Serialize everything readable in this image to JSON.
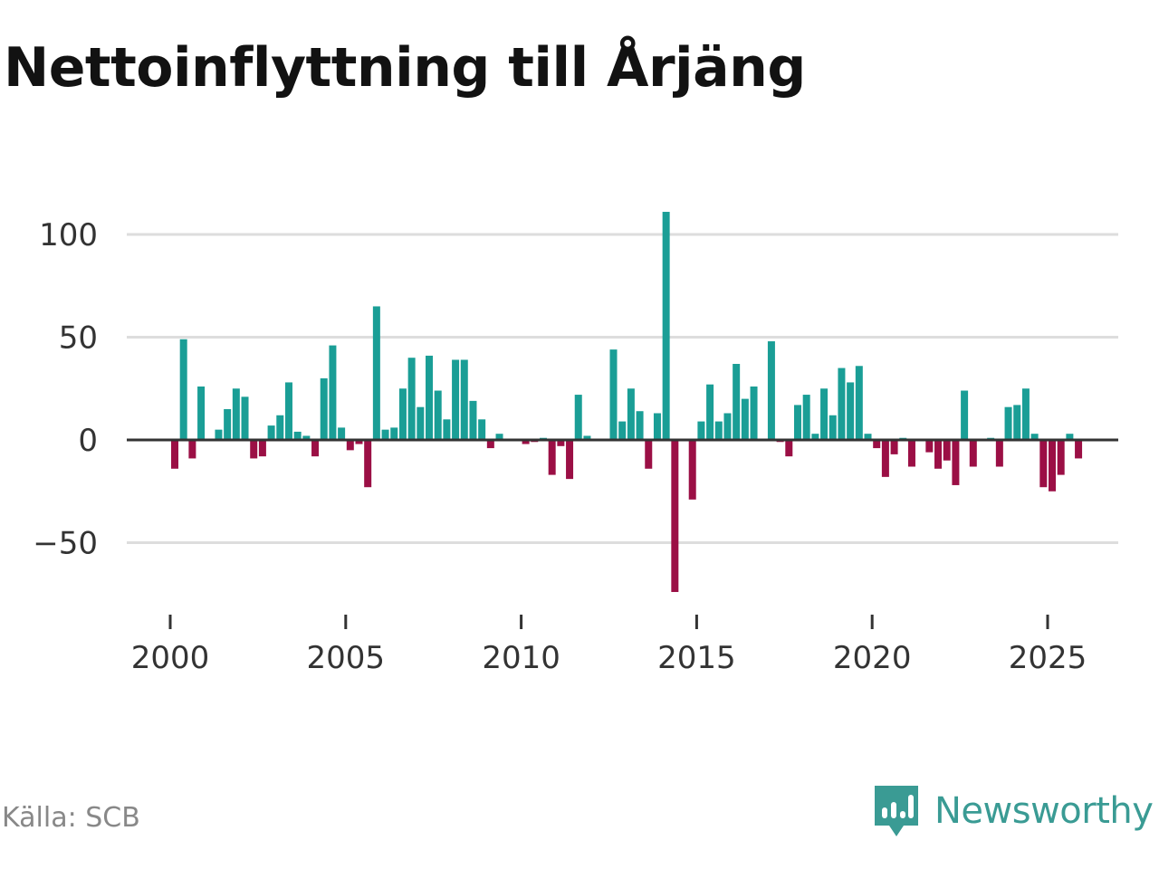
{
  "chart_data": {
    "type": "bar",
    "title": "Nettoinflyttning till Årjäng",
    "xlabel": "",
    "ylabel": "",
    "x_tick_labels": [
      "2000",
      "2005",
      "2010",
      "2015",
      "2020",
      "2025"
    ],
    "y_tick_labels": [
      "100",
      "50",
      "0",
      "−50"
    ],
    "y_ticks": [
      100,
      50,
      0,
      -50
    ],
    "ylim": [
      -75,
      112
    ],
    "x_range": [
      2000,
      2026
    ],
    "grid": true,
    "positive_color": "#1a9e96",
    "negative_color": "#9b0f45",
    "series": [
      {
        "name": "Nettoinflyttning",
        "x": [
          2000.0,
          2000.25,
          2000.5,
          2000.75,
          2001.0,
          2001.25,
          2001.5,
          2001.75,
          2002.0,
          2002.25,
          2002.5,
          2002.75,
          2003.0,
          2003.25,
          2003.5,
          2003.75,
          2004.0,
          2004.25,
          2004.5,
          2004.75,
          2005.0,
          2005.25,
          2005.5,
          2005.75,
          2006.0,
          2006.25,
          2006.5,
          2006.75,
          2007.0,
          2007.25,
          2007.5,
          2007.75,
          2008.0,
          2008.25,
          2008.5,
          2008.75,
          2009.0,
          2009.25,
          2009.5,
          2009.75,
          2010.0,
          2010.25,
          2010.5,
          2010.75,
          2011.0,
          2011.25,
          2011.5,
          2011.75,
          2012.0,
          2012.25,
          2012.5,
          2012.75,
          2013.0,
          2013.25,
          2013.5,
          2013.75,
          2014.0,
          2014.25,
          2014.5,
          2014.75,
          2015.0,
          2015.25,
          2015.5,
          2015.75,
          2016.0,
          2016.25,
          2016.5,
          2016.75,
          2017.0,
          2017.25,
          2017.5,
          2017.75,
          2018.0,
          2018.25,
          2018.5,
          2018.75,
          2019.0,
          2019.25,
          2019.5,
          2019.75,
          2020.0,
          2020.25,
          2020.5,
          2020.75,
          2021.0,
          2021.25,
          2021.5,
          2021.75,
          2022.0,
          2022.25,
          2022.5,
          2022.75,
          2023.0,
          2023.25,
          2023.5,
          2023.75,
          2024.0,
          2024.25,
          2024.5,
          2024.75,
          2025.0,
          2025.25,
          2025.5,
          2025.75
        ],
        "values": [
          -14,
          49,
          -9,
          26,
          0,
          5,
          15,
          25,
          21,
          -9,
          -8,
          7,
          12,
          28,
          4,
          2,
          -8,
          30,
          46,
          6,
          -5,
          -2,
          -23,
          65,
          5,
          6,
          25,
          40,
          16,
          41,
          24,
          10,
          39,
          39,
          19,
          10,
          -4,
          3,
          0,
          0,
          -2,
          -1,
          1,
          -17,
          -3,
          -19,
          22,
          2,
          0,
          0,
          44,
          9,
          25,
          14,
          -14,
          13,
          111,
          -74,
          0,
          -29,
          9,
          27,
          9,
          13,
          37,
          20,
          26,
          0,
          48,
          -1,
          -8,
          17,
          22,
          3,
          25,
          12,
          35,
          28,
          36,
          3,
          -4,
          -18,
          -7,
          1,
          -13,
          0,
          -6,
          -14,
          -10,
          -22,
          24,
          -13,
          0,
          1,
          -13,
          16,
          17,
          25,
          3,
          -23,
          -25,
          -17,
          3,
          -9
        ]
      }
    ]
  },
  "source_label": "Källa: SCB",
  "brand": {
    "name": "Newsworthy",
    "icon": "newsworthy-logo-icon",
    "color": "#3a9b94"
  }
}
